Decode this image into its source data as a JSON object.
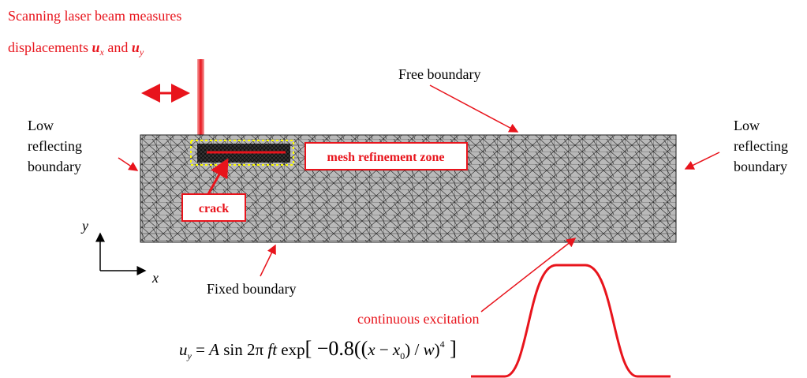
{
  "laser_label": {
    "line1": "Scanning laser beam measures",
    "line2": [
      "displacements ",
      "u",
      "x",
      " and ",
      "u",
      "y"
    ]
  },
  "free_boundary": "Free boundary",
  "left_boundary": [
    "Low",
    "reflecting",
    "boundary"
  ],
  "right_boundary": [
    "Low",
    "reflecting",
    "boundary"
  ],
  "refinement_label": "mesh refinement zone",
  "crack_label": "crack",
  "axes": {
    "y": "y",
    "x": "x"
  },
  "fixed_boundary": "Fixed boundary",
  "excitation_label": "continuous excitation",
  "equation": [
    "u",
    "y",
    " = ",
    "A",
    " sin 2π ",
    "ft",
    " exp",
    "[ −0.8((",
    "x",
    " − ",
    "x",
    "0",
    ") / ",
    "w",
    ")",
    "4",
    " ]"
  ]
}
